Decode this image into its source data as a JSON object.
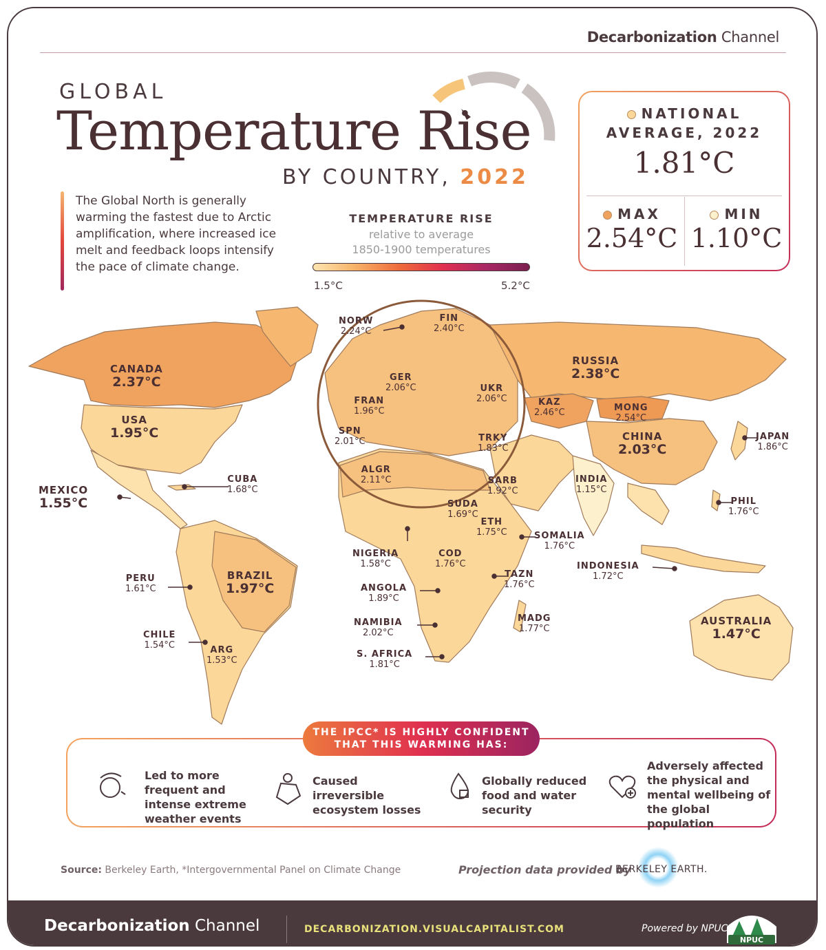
{
  "brand": {
    "bold": "Decarbonization",
    "thin": " Channel"
  },
  "title": {
    "line1": "GLOBAL",
    "line2": "Temperature Rise",
    "line3_prefix": "BY COUNTRY, ",
    "year": "2022"
  },
  "intro": "The Global North is generally warming the fastest due to Arctic amplification, where increased ice melt and feedback loops intensify the pace of climate change.",
  "legend": {
    "title": "TEMPERATURE RISE",
    "subtitle_1": "relative to average",
    "subtitle_2": "1850-1900 temperatures",
    "min": "1.5°C",
    "max": "5.2°C"
  },
  "stats": {
    "national_label_1": "NATIONAL",
    "national_label_2": "AVERAGE, 2022",
    "national_value": "1.81°C",
    "max_label": "MAX",
    "max_value": "2.54°C",
    "min_label": "MIN",
    "min_value": "1.10°C"
  },
  "countries": [
    {
      "name": "CANADA",
      "value": "2.37°C"
    },
    {
      "name": "USA",
      "value": "1.95°C"
    },
    {
      "name": "MEXICO",
      "value": "1.55°C"
    },
    {
      "name": "CUBA",
      "value": "1.68°C"
    },
    {
      "name": "BRAZIL",
      "value": "1.97°C"
    },
    {
      "name": "PERU",
      "value": "1.61°C"
    },
    {
      "name": "CHILE",
      "value": "1.54°C"
    },
    {
      "name": "ARG",
      "value": "1.53°C"
    },
    {
      "name": "NORW",
      "value": "2.24°C"
    },
    {
      "name": "FIN",
      "value": "2.40°C"
    },
    {
      "name": "GER",
      "value": "2.06°C"
    },
    {
      "name": "FRAN",
      "value": "1.96°C"
    },
    {
      "name": "UKR",
      "value": "2.06°C"
    },
    {
      "name": "SPN",
      "value": "2.01°C"
    },
    {
      "name": "TRKY",
      "value": "1.83°C"
    },
    {
      "name": "ALGR",
      "value": "2.11°C"
    },
    {
      "name": "RUSSIA",
      "value": "2.38°C"
    },
    {
      "name": "KAZ",
      "value": "2.46°C"
    },
    {
      "name": "MONG",
      "value": "2.54°C"
    },
    {
      "name": "CHINA",
      "value": "2.03°C"
    },
    {
      "name": "JAPAN",
      "value": "1.86°C"
    },
    {
      "name": "INDIA",
      "value": "1.15°C"
    },
    {
      "name": "PHIL",
      "value": "1.76°C"
    },
    {
      "name": "INDONESIA",
      "value": "1.72°C"
    },
    {
      "name": "AUSTRALIA",
      "value": "1.47°C"
    },
    {
      "name": "SARB",
      "value": "1.92°C"
    },
    {
      "name": "SUDA",
      "value": "1.69°C"
    },
    {
      "name": "ETH",
      "value": "1.75°C"
    },
    {
      "name": "SOMALIA",
      "value": "1.76°C"
    },
    {
      "name": "NIGERIA",
      "value": "1.58°C"
    },
    {
      "name": "COD",
      "value": "1.76°C"
    },
    {
      "name": "TAZN",
      "value": "1.76°C"
    },
    {
      "name": "ANGOLA",
      "value": "1.89°C"
    },
    {
      "name": "NAMIBIA",
      "value": "2.02°C"
    },
    {
      "name": "MADG",
      "value": "1.77°C"
    },
    {
      "name": "S. AFRICA",
      "value": "1.81°C"
    }
  ],
  "ipcc": {
    "pill_line1": "THE IPCC* IS HIGHLY CONFIDENT",
    "pill_line2": "THAT THIS WARMING HAS:",
    "items": [
      "Led to more frequent and intense extreme weather events",
      "Caused irreversible ecosystem losses",
      "Globally reduced food and water security",
      "Adversely affected the physical and mental wellbeing of the global population"
    ]
  },
  "source": {
    "label": "Source:",
    "text": " Berkeley Earth, *Intergovernmental Panel on Climate Change"
  },
  "projection": {
    "text": "Projection data provided by",
    "provider": "BERKELEY EARTH."
  },
  "footer": {
    "brand_bold": "Decarbonization",
    "brand_thin": " Channel",
    "url": "DECARBONIZATION.VISUALCAPITALIST.COM",
    "powered": "Powered by NPUC",
    "npuc_logo": "NPUC"
  },
  "colors": {
    "accent": "#ec8b45",
    "dark": "#4a3a3d",
    "land_light": "#fbd89a",
    "land_mid": "#f6b870",
    "land_dark": "#f0a35e"
  }
}
